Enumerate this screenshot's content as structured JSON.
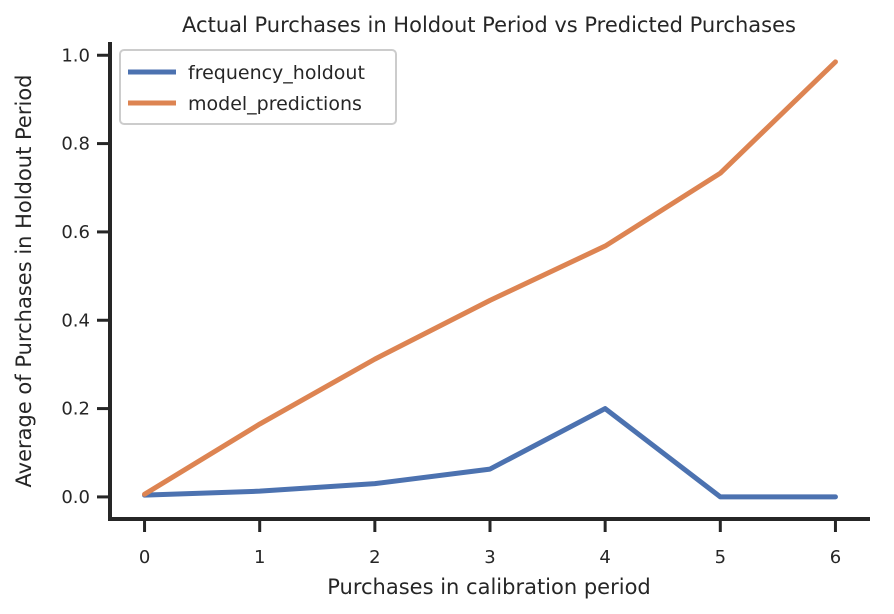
{
  "chart_data": {
    "type": "line",
    "title": "Actual Purchases in Holdout Period vs Predicted Purchases",
    "xlabel": "Purchases in calibration period",
    "ylabel": "Average of Purchases in Holdout Period",
    "x": [
      0,
      1,
      2,
      3,
      4,
      5,
      6
    ],
    "xlim": [
      -0.3,
      6.3
    ],
    "ylim": [
      -0.05,
      1.03
    ],
    "xticks": [
      0,
      1,
      2,
      3,
      4,
      5,
      6
    ],
    "xtick_labels": [
      "0",
      "1",
      "2",
      "3",
      "4",
      "5",
      "6"
    ],
    "yticks": [
      0.0,
      0.2,
      0.4,
      0.6,
      0.8,
      1.0
    ],
    "ytick_labels": [
      "0.0",
      "0.2",
      "0.4",
      "0.6",
      "0.8",
      "1.0"
    ],
    "grid": false,
    "legend_position": "top-left",
    "series": [
      {
        "name": "frequency_holdout",
        "color": "#4c72b0",
        "values": [
          0.004,
          0.013,
          0.03,
          0.063,
          0.2,
          0.0,
          0.0
        ]
      },
      {
        "name": "model_predictions",
        "color": "#dd8452",
        "values": [
          0.006,
          0.165,
          0.312,
          0.445,
          0.568,
          0.733,
          0.985
        ]
      }
    ]
  }
}
